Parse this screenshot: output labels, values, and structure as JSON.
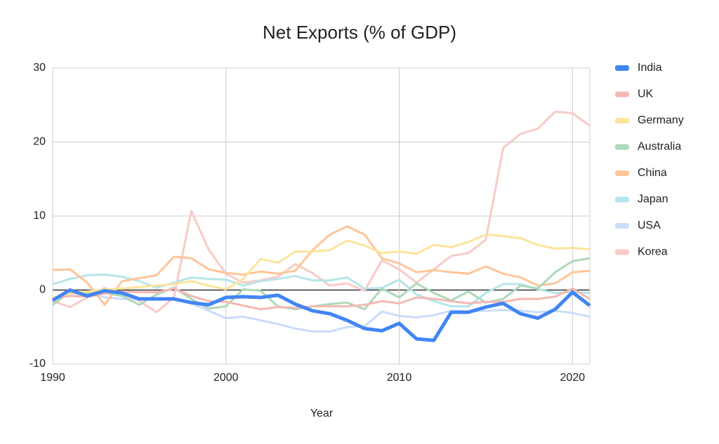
{
  "chart_data": {
    "type": "line",
    "title": "Net Exports (% of GDP)",
    "x_label": "Year",
    "x": [
      1990,
      1991,
      1992,
      1993,
      1994,
      1995,
      1996,
      1997,
      1998,
      1999,
      2000,
      2001,
      2002,
      2003,
      2004,
      2005,
      2006,
      2007,
      2008,
      2009,
      2010,
      2011,
      2012,
      2013,
      2014,
      2015,
      2016,
      2017,
      2018,
      2019,
      2020,
      2021
    ],
    "xlim": [
      1990,
      2021
    ],
    "xticks": [
      1990,
      2000,
      2010,
      2020
    ],
    "ylim": [
      -10,
      30
    ],
    "yticks": [
      -10,
      0,
      10,
      20,
      30
    ],
    "grid": true,
    "legend": "right",
    "series": [
      {
        "name": "India",
        "color": "#4285f4",
        "values": [
          -1.4,
          0,
          -0.8,
          -0.1,
          -0.4,
          -1.2,
          -1.2,
          -1.2,
          -1.7,
          -2.0,
          -1.0,
          -0.9,
          -1.0,
          -0.7,
          -1.9,
          -2.8,
          -3.2,
          -4.1,
          -5.2,
          -5.5,
          -4.5,
          -6.6,
          -6.8,
          -3.0,
          -3.0,
          -2.3,
          -1.8,
          -3.2,
          -3.8,
          -2.6,
          -0.3,
          -2.1
        ]
      },
      {
        "name": "UK",
        "color": "#f4b8b2",
        "values": [
          -1.2,
          -0.8,
          -0.9,
          -0.5,
          -0.2,
          -0.3,
          -0.3,
          0.2,
          -0.8,
          -1.5,
          -1.6,
          -2.1,
          -2.6,
          -2.3,
          -2.4,
          -2.2,
          -2.2,
          -2.2,
          -2.0,
          -1.5,
          -1.8,
          -1.0,
          -1.2,
          -1.5,
          -1.8,
          -1.6,
          -1.6,
          -1.2,
          -1.2,
          -0.9,
          0.2,
          -1.2
        ]
      },
      {
        "name": "Germany",
        "color": "#fde49b",
        "values": [
          -1.0,
          -0.5,
          -0.2,
          0.1,
          0.2,
          0.4,
          0.6,
          0.8,
          1.2,
          0.6,
          0.1,
          1.5,
          4.2,
          3.7,
          5.2,
          5.2,
          5.4,
          6.7,
          6.0,
          5.0,
          5.2,
          4.9,
          6.1,
          5.8,
          6.5,
          7.5,
          7.3,
          7.0,
          6.1,
          5.6,
          5.7,
          5.5
        ]
      },
      {
        "name": "Australia",
        "color": "#add9b9",
        "values": [
          -2.0,
          -0.3,
          -0.4,
          -0.4,
          -0.8,
          -2.0,
          -0.6,
          0.3,
          -1.2,
          -2.5,
          -2.2,
          0.1,
          -0.1,
          -2.2,
          -2.6,
          -2.2,
          -1.9,
          -1.7,
          -2.6,
          0.2,
          -1.0,
          0.9,
          -0.4,
          -1.4,
          -0.2,
          -1.7,
          -1.2,
          0.6,
          0.2,
          2.4,
          3.9,
          4.3
        ]
      },
      {
        "name": "China",
        "color": "#ffc598",
        "values": [
          2.7,
          2.8,
          1.0,
          -2.0,
          1.2,
          1.6,
          2.0,
          4.5,
          4.3,
          2.8,
          2.3,
          2.1,
          2.5,
          2.2,
          2.6,
          5.4,
          7.5,
          8.6,
          7.5,
          4.3,
          3.6,
          2.4,
          2.7,
          2.4,
          2.2,
          3.2,
          2.2,
          1.7,
          0.6,
          0.9,
          2.4,
          2.6
        ]
      },
      {
        "name": "Japan",
        "color": "#b5e5e8",
        "values": [
          0.8,
          1.5,
          2.0,
          2.1,
          1.8,
          1.2,
          0.3,
          1.0,
          1.7,
          1.5,
          1.4,
          0.6,
          1.2,
          1.5,
          1.9,
          1.3,
          1.3,
          1.7,
          0.2,
          0.3,
          1.4,
          -0.6,
          -1.5,
          -2.2,
          -2.2,
          -0.4,
          0.8,
          0.8,
          0.1,
          -0.4,
          -0.3,
          -0.4
        ]
      },
      {
        "name": "USA",
        "color": "#cadcfb",
        "values": [
          -1.3,
          -0.5,
          -0.5,
          -1.0,
          -1.2,
          -1.3,
          -1.2,
          -1.2,
          -1.8,
          -2.8,
          -3.8,
          -3.6,
          -4.1,
          -4.6,
          -5.2,
          -5.6,
          -5.6,
          -5.0,
          -4.9,
          -2.9,
          -3.5,
          -3.7,
          -3.4,
          -2.8,
          -2.9,
          -2.8,
          -2.7,
          -2.8,
          -3.0,
          -2.8,
          -3.1,
          -3.6
        ]
      },
      {
        "name": "Korea",
        "color": "#f9cac6",
        "values": [
          -1.5,
          -2.3,
          -1.0,
          0.3,
          -0.5,
          -1.5,
          -3.0,
          -1.0,
          10.7,
          5.5,
          2.2,
          1.0,
          1.3,
          1.8,
          3.5,
          2.3,
          0.6,
          0.9,
          -0.1,
          4.0,
          2.8,
          1.0,
          2.8,
          4.6,
          5.0,
          6.8,
          19.2,
          21.1,
          21.8,
          24.1,
          23.9,
          22.2
        ]
      }
    ]
  }
}
